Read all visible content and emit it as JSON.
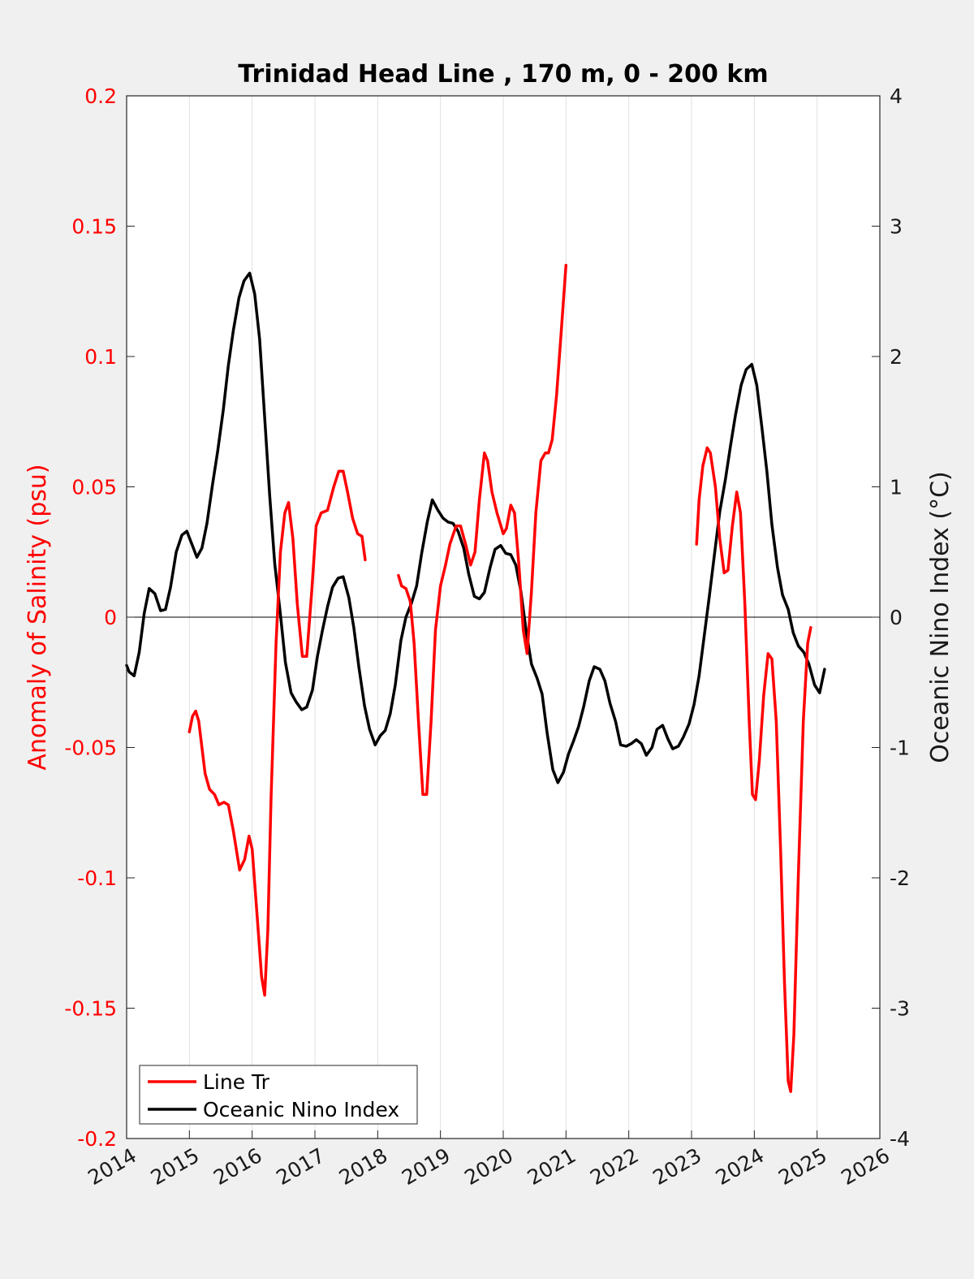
{
  "chart_data": {
    "type": "line",
    "title": "Trinidad Head Line , 170 m, 0 - 200 km",
    "ylabel_left": "Anomaly of Salinity (psu)",
    "ylabel_right": "Oceanic Nino Index (°C)",
    "xlim": [
      2014,
      2026
    ],
    "ylim_left": [
      -0.2,
      0.2
    ],
    "ylim_right": [
      -4,
      4
    ],
    "x_ticks": [
      "2014",
      "2015",
      "2016",
      "2017",
      "2018",
      "2019",
      "2020",
      "2021",
      "2022",
      "2023",
      "2024",
      "2025",
      "2026"
    ],
    "y_ticks_left": [
      "0.2",
      "0.15",
      "0.1",
      "0.05",
      "0",
      "-0.05",
      "-0.1",
      "-0.15",
      "-0.2"
    ],
    "y_ticks_right": [
      "4",
      "3",
      "2",
      "1",
      "0",
      "-1",
      "-2",
      "-3",
      "-4"
    ],
    "grid": "vertical lines at x ticks",
    "legend_position": "bottom-left",
    "colors": {
      "salinity": "#ff0000",
      "oni": "#000000",
      "left_axis": "#ff0000",
      "grid": "#e0e0e0",
      "background": "#f0f0f0",
      "plot_background": "#ffffff"
    },
    "series": [
      {
        "name": "Line Tr",
        "axis": "left",
        "color": "#ff0000",
        "segments": [
          [
            [
              2015.0,
              -0.044
            ],
            [
              2015.05,
              -0.038
            ],
            [
              2015.1,
              -0.036
            ],
            [
              2015.15,
              -0.04
            ],
            [
              2015.2,
              -0.05
            ],
            [
              2015.25,
              -0.06
            ],
            [
              2015.32,
              -0.066
            ],
            [
              2015.4,
              -0.068
            ],
            [
              2015.47,
              -0.072
            ],
            [
              2015.55,
              -0.071
            ],
            [
              2015.62,
              -0.072
            ],
            [
              2015.7,
              -0.082
            ],
            [
              2015.8,
              -0.097
            ],
            [
              2015.88,
              -0.093
            ],
            [
              2015.95,
              -0.084
            ],
            [
              2016.0,
              -0.089
            ],
            [
              2016.08,
              -0.115
            ],
            [
              2016.15,
              -0.138
            ],
            [
              2016.2,
              -0.145
            ],
            [
              2016.25,
              -0.12
            ],
            [
              2016.3,
              -0.07
            ],
            [
              2016.38,
              -0.01
            ],
            [
              2016.45,
              0.025
            ],
            [
              2016.52,
              0.04
            ],
            [
              2016.58,
              0.044
            ],
            [
              2016.65,
              0.03
            ],
            [
              2016.72,
              0.005
            ],
            [
              2016.8,
              -0.015
            ],
            [
              2016.87,
              -0.015
            ],
            [
              2016.95,
              0.01
            ],
            [
              2017.02,
              0.035
            ],
            [
              2017.1,
              0.04
            ],
            [
              2017.2,
              0.041
            ],
            [
              2017.3,
              0.05
            ],
            [
              2017.38,
              0.056
            ],
            [
              2017.45,
              0.056
            ],
            [
              2017.52,
              0.048
            ],
            [
              2017.6,
              0.038
            ],
            [
              2017.68,
              0.032
            ],
            [
              2017.75,
              0.031
            ],
            [
              2017.8,
              0.022
            ]
          ],
          [
            [
              2018.33,
              0.016
            ],
            [
              2018.38,
              0.012
            ],
            [
              2018.45,
              0.011
            ],
            [
              2018.52,
              0.006
            ],
            [
              2018.58,
              -0.01
            ],
            [
              2018.65,
              -0.04
            ],
            [
              2018.72,
              -0.068
            ],
            [
              2018.78,
              -0.068
            ],
            [
              2018.85,
              -0.04
            ],
            [
              2018.92,
              -0.005
            ],
            [
              2019.0,
              0.012
            ],
            [
              2019.08,
              0.02
            ],
            [
              2019.15,
              0.028
            ],
            [
              2019.25,
              0.035
            ],
            [
              2019.32,
              0.035
            ],
            [
              2019.4,
              0.028
            ],
            [
              2019.48,
              0.02
            ],
            [
              2019.55,
              0.025
            ],
            [
              2019.62,
              0.045
            ],
            [
              2019.7,
              0.063
            ],
            [
              2019.75,
              0.06
            ],
            [
              2019.82,
              0.048
            ],
            [
              2019.9,
              0.04
            ],
            [
              2020.0,
              0.032
            ],
            [
              2020.05,
              0.034
            ],
            [
              2020.12,
              0.043
            ],
            [
              2020.18,
              0.04
            ],
            [
              2020.25,
              0.02
            ],
            [
              2020.32,
              -0.005
            ],
            [
              2020.38,
              -0.014
            ],
            [
              2020.45,
              0.01
            ],
            [
              2020.52,
              0.04
            ],
            [
              2020.6,
              0.06
            ],
            [
              2020.67,
              0.063
            ],
            [
              2020.72,
              0.063
            ],
            [
              2020.78,
              0.068
            ],
            [
              2020.85,
              0.085
            ],
            [
              2020.92,
              0.108
            ],
            [
              2021.0,
              0.135
            ]
          ],
          [
            [
              2023.08,
              0.028
            ],
            [
              2023.12,
              0.045
            ],
            [
              2023.18,
              0.058
            ],
            [
              2023.25,
              0.065
            ],
            [
              2023.3,
              0.063
            ],
            [
              2023.38,
              0.05
            ],
            [
              2023.45,
              0.03
            ],
            [
              2023.52,
              0.017
            ],
            [
              2023.58,
              0.018
            ],
            [
              2023.65,
              0.035
            ],
            [
              2023.72,
              0.048
            ],
            [
              2023.78,
              0.04
            ],
            [
              2023.85,
              0.005
            ],
            [
              2023.92,
              -0.04
            ],
            [
              2023.97,
              -0.068
            ],
            [
              2024.02,
              -0.07
            ],
            [
              2024.08,
              -0.055
            ],
            [
              2024.15,
              -0.03
            ],
            [
              2024.22,
              -0.014
            ],
            [
              2024.28,
              -0.016
            ],
            [
              2024.35,
              -0.04
            ],
            [
              2024.42,
              -0.09
            ],
            [
              2024.48,
              -0.14
            ],
            [
              2024.54,
              -0.178
            ],
            [
              2024.58,
              -0.182
            ],
            [
              2024.63,
              -0.16
            ],
            [
              2024.7,
              -0.1
            ],
            [
              2024.78,
              -0.04
            ],
            [
              2024.85,
              -0.01
            ],
            [
              2024.9,
              -0.004
            ]
          ]
        ]
      },
      {
        "name": "Oceanic Nino Index",
        "axis": "right",
        "color": "#000000",
        "segments": [
          [
            [
              2014.0,
              -0.37
            ],
            [
              2014.04,
              -0.42
            ],
            [
              2014.12,
              -0.45
            ],
            [
              2014.2,
              -0.27
            ],
            [
              2014.28,
              0.03
            ],
            [
              2014.36,
              0.22
            ],
            [
              2014.45,
              0.18
            ],
            [
              2014.54,
              0.05
            ],
            [
              2014.62,
              0.06
            ],
            [
              2014.7,
              0.23
            ],
            [
              2014.79,
              0.5
            ],
            [
              2014.88,
              0.63
            ],
            [
              2014.96,
              0.66
            ],
            [
              2015.04,
              0.56
            ],
            [
              2015.12,
              0.46
            ],
            [
              2015.2,
              0.53
            ],
            [
              2015.28,
              0.72
            ],
            [
              2015.37,
              1.02
            ],
            [
              2015.45,
              1.27
            ],
            [
              2015.54,
              1.59
            ],
            [
              2015.62,
              1.93
            ],
            [
              2015.7,
              2.2
            ],
            [
              2015.79,
              2.45
            ],
            [
              2015.87,
              2.58
            ],
            [
              2015.96,
              2.64
            ],
            [
              2016.04,
              2.48
            ],
            [
              2016.12,
              2.13
            ],
            [
              2016.2,
              1.53
            ],
            [
              2016.28,
              0.93
            ],
            [
              2016.36,
              0.41
            ],
            [
              2016.45,
              0.02
            ],
            [
              2016.53,
              -0.35
            ],
            [
              2016.62,
              -0.58
            ],
            [
              2016.7,
              -0.65
            ],
            [
              2016.79,
              -0.71
            ],
            [
              2016.87,
              -0.69
            ],
            [
              2016.96,
              -0.56
            ],
            [
              2017.04,
              -0.3
            ],
            [
              2017.12,
              -0.1
            ],
            [
              2017.2,
              0.08
            ],
            [
              2017.28,
              0.23
            ],
            [
              2017.37,
              0.3
            ],
            [
              2017.45,
              0.31
            ],
            [
              2017.54,
              0.15
            ],
            [
              2017.62,
              -0.08
            ],
            [
              2017.7,
              -0.38
            ],
            [
              2017.79,
              -0.68
            ],
            [
              2017.87,
              -0.86
            ],
            [
              2017.96,
              -0.98
            ],
            [
              2018.04,
              -0.91
            ],
            [
              2018.12,
              -0.87
            ],
            [
              2018.2,
              -0.74
            ],
            [
              2018.28,
              -0.52
            ],
            [
              2018.37,
              -0.18
            ],
            [
              2018.45,
              0.0
            ],
            [
              2018.54,
              0.11
            ],
            [
              2018.62,
              0.24
            ],
            [
              2018.7,
              0.49
            ],
            [
              2018.79,
              0.73
            ],
            [
              2018.87,
              0.9
            ],
            [
              2018.96,
              0.82
            ],
            [
              2019.04,
              0.76
            ],
            [
              2019.12,
              0.73
            ],
            [
              2019.2,
              0.72
            ],
            [
              2019.28,
              0.66
            ],
            [
              2019.37,
              0.53
            ],
            [
              2019.45,
              0.33
            ],
            [
              2019.54,
              0.16
            ],
            [
              2019.62,
              0.14
            ],
            [
              2019.7,
              0.19
            ],
            [
              2019.79,
              0.38
            ],
            [
              2019.87,
              0.52
            ],
            [
              2019.96,
              0.55
            ],
            [
              2020.04,
              0.49
            ],
            [
              2020.12,
              0.48
            ],
            [
              2020.2,
              0.4
            ],
            [
              2020.28,
              0.2
            ],
            [
              2020.37,
              -0.12
            ],
            [
              2020.45,
              -0.36
            ],
            [
              2020.54,
              -0.47
            ],
            [
              2020.62,
              -0.59
            ],
            [
              2020.7,
              -0.89
            ],
            [
              2020.79,
              -1.17
            ],
            [
              2020.87,
              -1.27
            ],
            [
              2020.96,
              -1.19
            ],
            [
              2021.04,
              -1.05
            ],
            [
              2021.12,
              -0.95
            ],
            [
              2021.2,
              -0.84
            ],
            [
              2021.28,
              -0.69
            ],
            [
              2021.37,
              -0.49
            ],
            [
              2021.45,
              -0.38
            ],
            [
              2021.54,
              -0.4
            ],
            [
              2021.62,
              -0.49
            ],
            [
              2021.7,
              -0.66
            ],
            [
              2021.79,
              -0.8
            ],
            [
              2021.87,
              -0.98
            ],
            [
              2021.96,
              -0.99
            ],
            [
              2022.04,
              -0.97
            ],
            [
              2022.12,
              -0.94
            ],
            [
              2022.2,
              -0.97
            ],
            [
              2022.28,
              -1.06
            ],
            [
              2022.37,
              -1.0
            ],
            [
              2022.45,
              -0.86
            ],
            [
              2022.54,
              -0.83
            ],
            [
              2022.62,
              -0.93
            ],
            [
              2022.7,
              -1.01
            ],
            [
              2022.79,
              -0.99
            ],
            [
              2022.87,
              -0.92
            ],
            [
              2022.96,
              -0.82
            ],
            [
              2023.04,
              -0.67
            ],
            [
              2023.12,
              -0.45
            ],
            [
              2023.2,
              -0.15
            ],
            [
              2023.28,
              0.15
            ],
            [
              2023.37,
              0.5
            ],
            [
              2023.45,
              0.81
            ],
            [
              2023.54,
              1.06
            ],
            [
              2023.62,
              1.31
            ],
            [
              2023.7,
              1.55
            ],
            [
              2023.79,
              1.78
            ],
            [
              2023.87,
              1.9
            ],
            [
              2023.96,
              1.94
            ],
            [
              2024.04,
              1.78
            ],
            [
              2024.12,
              1.46
            ],
            [
              2024.2,
              1.12
            ],
            [
              2024.28,
              0.71
            ],
            [
              2024.37,
              0.38
            ],
            [
              2024.45,
              0.17
            ],
            [
              2024.54,
              0.06
            ],
            [
              2024.62,
              -0.12
            ],
            [
              2024.7,
              -0.22
            ],
            [
              2024.79,
              -0.27
            ],
            [
              2024.87,
              -0.36
            ],
            [
              2024.96,
              -0.52
            ],
            [
              2025.04,
              -0.58
            ],
            [
              2025.12,
              -0.4
            ]
          ]
        ]
      }
    ]
  }
}
